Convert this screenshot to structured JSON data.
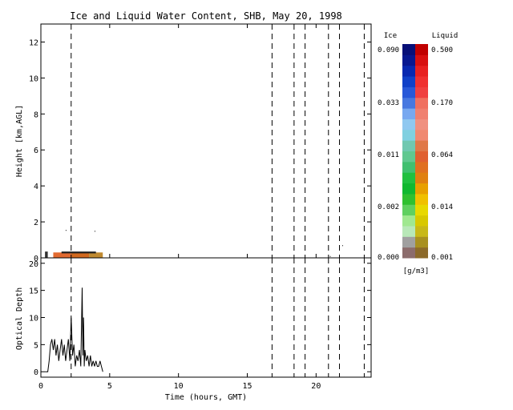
{
  "chart_data": {
    "title": "Ice and Liquid Water Content, SHB, May 20, 1998",
    "xlabel": "Time (hours, GMT)",
    "xlim": [
      0,
      24
    ],
    "x_ticks": [
      0,
      5,
      10,
      15,
      20
    ],
    "x_tick_labels": [
      "0",
      "5",
      "10",
      "15",
      "20"
    ],
    "dashed_event_lines_hours": [
      2.2,
      16.8,
      18.4,
      19.2,
      20.9,
      21.7,
      23.5
    ],
    "panels": [
      {
        "id": "water-content",
        "type": "heatmap",
        "ylabel": "Height [km,AGL]",
        "ylim": [
          0,
          13
        ],
        "y_ticks": [
          0,
          2,
          4,
          6,
          8,
          10,
          12
        ],
        "y_tick_labels": [
          "0",
          "2",
          "4",
          "6",
          "8",
          "10",
          "12"
        ],
        "cloud_cells": [
          {
            "x0": 0.3,
            "x1": 0.5,
            "y0": 0.0,
            "y1": 0.35,
            "phase": "mixed",
            "color": "#303030"
          },
          {
            "x0": 0.9,
            "x1": 2.2,
            "y0": 0.0,
            "y1": 0.3,
            "phase": "liquid",
            "color": "#e26a30"
          },
          {
            "x0": 2.2,
            "x1": 3.5,
            "y0": 0.0,
            "y1": 0.3,
            "phase": "liquid",
            "color": "#d2691e"
          },
          {
            "x0": 3.5,
            "x1": 4.5,
            "y0": 0.0,
            "y1": 0.3,
            "phase": "liquid",
            "color": "#c08a30"
          },
          {
            "x0": 1.5,
            "x1": 4.0,
            "y0": 0.25,
            "y1": 0.35,
            "phase": "edge",
            "color": "#202020"
          }
        ],
        "scattered_specks": [
          {
            "x": 1.8,
            "y": 1.55
          },
          {
            "x": 3.9,
            "y": 1.5
          },
          {
            "x": 21.0,
            "y": 0.1
          },
          {
            "x": 21.9,
            "y": 0.7
          }
        ]
      },
      {
        "id": "optical-depth",
        "type": "line",
        "ylabel": "Optical Depth",
        "ylim": [
          -1,
          21
        ],
        "y_ticks": [
          0,
          5,
          10,
          15,
          20
        ],
        "y_tick_labels": [
          "0",
          "5",
          "10",
          "15",
          "20"
        ],
        "x": [
          0.3,
          0.5,
          0.6,
          0.7,
          0.8,
          0.9,
          1.0,
          1.1,
          1.2,
          1.3,
          1.4,
          1.5,
          1.6,
          1.7,
          1.8,
          1.9,
          2.0,
          2.1,
          2.2,
          2.3,
          2.4,
          2.5,
          2.6,
          2.7,
          2.8,
          2.9,
          3.0,
          3.05,
          3.1,
          3.15,
          3.2,
          3.3,
          3.4,
          3.5,
          3.6,
          3.7,
          3.8,
          3.9,
          4.0,
          4.1,
          4.2,
          4.3,
          4.4,
          4.5
        ],
        "y": [
          0,
          0,
          2,
          5,
          6,
          4,
          6,
          3,
          5,
          2,
          4,
          6,
          3,
          5,
          2,
          4,
          6,
          2,
          10,
          3,
          5,
          1,
          3,
          2,
          4,
          1,
          15.5,
          3,
          10,
          1,
          4,
          2,
          3,
          1,
          3,
          1,
          2,
          1,
          2,
          1,
          1,
          2,
          1,
          0
        ]
      }
    ],
    "colorbar": {
      "ice_label": "Ice",
      "liquid_label": "Liquid",
      "units": "[g/m3]",
      "ice_tick_labels": [
        "0.090",
        "0.033",
        "0.011",
        "0.002",
        "0.000"
      ],
      "liquid_tick_labels": [
        "0.500",
        "0.170",
        "0.064",
        "0.014",
        "0.001"
      ],
      "ice_colors": [
        "#8c6c6c",
        "#a0a0a0",
        "#b8e8b8",
        "#a0e890",
        "#60d060",
        "#30c030",
        "#10b830",
        "#20c040",
        "#40c070",
        "#60c890",
        "#70c8b0",
        "#80d0e0",
        "#90c8f0",
        "#78a8f0",
        "#4878e0",
        "#2858d8",
        "#1040c8",
        "#0828b0",
        "#081890",
        "#081078"
      ],
      "liquid_colors": [
        "#8c6a2a",
        "#a89020",
        "#c8b818",
        "#d8c800",
        "#e8d800",
        "#f0c000",
        "#e8a000",
        "#e08010",
        "#e07020",
        "#e06030",
        "#e07848",
        "#f08870",
        "#f09080",
        "#f08070",
        "#f07060",
        "#f04040",
        "#f03030",
        "#e82020",
        "#d81010",
        "#c00000"
      ]
    }
  }
}
